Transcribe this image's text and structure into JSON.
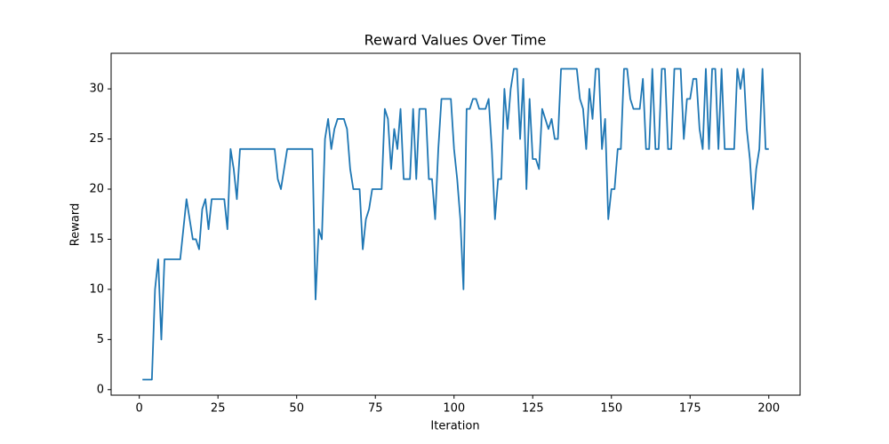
{
  "chart_data": {
    "type": "line",
    "title": "Reward Values Over Time",
    "x_label": "Iteration",
    "y_label": "Reward",
    "x": [
      1,
      2,
      3,
      4,
      5,
      6,
      7,
      8,
      9,
      10,
      11,
      12,
      13,
      14,
      15,
      16,
      17,
      18,
      19,
      20,
      21,
      22,
      23,
      24,
      25,
      26,
      27,
      28,
      29,
      30,
      31,
      32,
      33,
      34,
      35,
      36,
      37,
      38,
      39,
      40,
      41,
      42,
      43,
      44,
      45,
      46,
      47,
      48,
      49,
      50,
      51,
      52,
      53,
      54,
      55,
      56,
      57,
      58,
      59,
      60,
      61,
      62,
      63,
      64,
      65,
      66,
      67,
      68,
      69,
      70,
      71,
      72,
      73,
      74,
      75,
      76,
      77,
      78,
      79,
      80,
      81,
      82,
      83,
      84,
      85,
      86,
      87,
      88,
      89,
      90,
      91,
      92,
      93,
      94,
      95,
      96,
      97,
      98,
      99,
      100,
      101,
      102,
      103,
      104,
      105,
      106,
      107,
      108,
      109,
      110,
      111,
      112,
      113,
      114,
      115,
      116,
      117,
      118,
      119,
      120,
      121,
      122,
      123,
      124,
      125,
      126,
      127,
      128,
      129,
      130,
      131,
      132,
      133,
      134,
      135,
      136,
      137,
      138,
      139,
      140,
      141,
      142,
      143,
      144,
      145,
      146,
      147,
      148,
      149,
      150,
      151,
      152,
      153,
      154,
      155,
      156,
      157,
      158,
      159,
      160,
      161,
      162,
      163,
      164,
      165,
      166,
      167,
      168,
      169,
      170,
      171,
      172,
      173,
      174,
      175,
      176,
      177,
      178,
      179,
      180,
      181,
      182,
      183,
      184,
      185,
      186,
      187,
      188,
      189,
      190,
      191,
      192,
      193,
      194,
      195,
      196,
      197,
      198,
      199,
      200
    ],
    "series": [
      {
        "color": "#1f77b4",
        "values": [
          1,
          1,
          1,
          1,
          10,
          13,
          5,
          13,
          13,
          13,
          13,
          13,
          13,
          16,
          19,
          17,
          15,
          15,
          14,
          18,
          19,
          16,
          19,
          19,
          19,
          19,
          19,
          16,
          24,
          22,
          19,
          24,
          24,
          24,
          24,
          24,
          24,
          24,
          24,
          24,
          24,
          24,
          24,
          21,
          20,
          22,
          24,
          24,
          24,
          24,
          24,
          24,
          24,
          24,
          24,
          9,
          16,
          15,
          25,
          27,
          24,
          26,
          27,
          27,
          27,
          26,
          22,
          20,
          20,
          20,
          14,
          17,
          18,
          20,
          20,
          20,
          20,
          28,
          27,
          22,
          26,
          24,
          28,
          21,
          21,
          21,
          28,
          21,
          28,
          28,
          28,
          21,
          21,
          17,
          24,
          29,
          29,
          29,
          29,
          24,
          21,
          17,
          10,
          28,
          28,
          29,
          29,
          28,
          28,
          28,
          29,
          24,
          17,
          21,
          21,
          30,
          26,
          30,
          32,
          32,
          25,
          31,
          20,
          29,
          23,
          23,
          22,
          28,
          27,
          26,
          27,
          25,
          25,
          32,
          32,
          32,
          32,
          32,
          32,
          29,
          28,
          24,
          30,
          27,
          32,
          32,
          24,
          27,
          17,
          20,
          20,
          24,
          24,
          32,
          32,
          29,
          28,
          28,
          28,
          31,
          24,
          24,
          32,
          24,
          24,
          32,
          32,
          24,
          24,
          32,
          32,
          32,
          25,
          29,
          29,
          31,
          31,
          26,
          24,
          32,
          24,
          32,
          32,
          24,
          32,
          24,
          24,
          24,
          24,
          32,
          30,
          32,
          26,
          23,
          18,
          22,
          24,
          32,
          24,
          24
        ]
      }
    ],
    "xlim": [
      -8.95,
      209.95
    ],
    "ylim": [
      -0.55,
      33.55
    ],
    "xticks": [
      0,
      25,
      50,
      75,
      100,
      125,
      150,
      175,
      200
    ],
    "yticks": [
      0,
      5,
      10,
      15,
      20,
      25,
      30
    ]
  }
}
